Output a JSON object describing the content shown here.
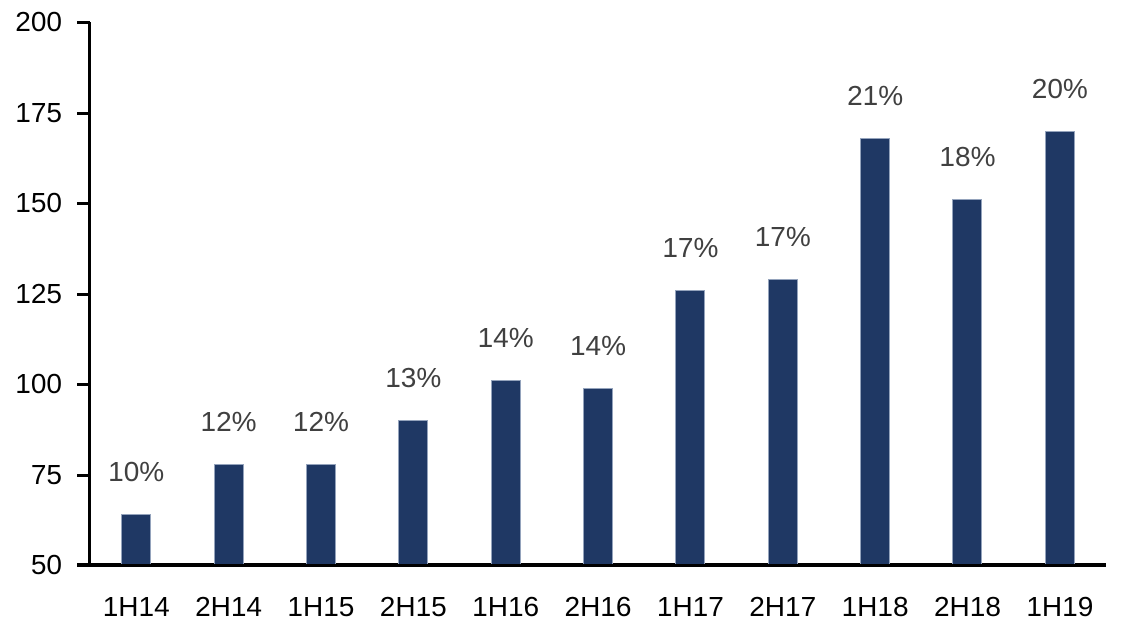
{
  "chart_data": {
    "type": "bar",
    "title": "",
    "xlabel": "",
    "ylabel": "",
    "categories": [
      "1H14",
      "2H14",
      "1H15",
      "2H15",
      "1H16",
      "2H16",
      "1H17",
      "2H17",
      "1H18",
      "2H18",
      "1H19"
    ],
    "values": [
      64,
      78,
      78,
      90,
      101,
      99,
      126,
      129,
      168,
      151,
      170
    ],
    "bar_labels": [
      "10%",
      "12%",
      "12%",
      "13%",
      "14%",
      "14%",
      "17%",
      "17%",
      "21%",
      "18%",
      "20%"
    ],
    "ylim": [
      50,
      200
    ],
    "ytick_step": 25,
    "y_tick_labels": [
      "50",
      "75",
      "100",
      "125",
      "150",
      "175",
      "200"
    ],
    "grid": "off",
    "legend": "none",
    "colors": {
      "bar_fill": "#1F3864",
      "bar_border": "#94A3BC",
      "data_label": "#404040",
      "axis_line": "#000000",
      "axis_text": "#000000",
      "background": "#FFFFFF"
    }
  }
}
